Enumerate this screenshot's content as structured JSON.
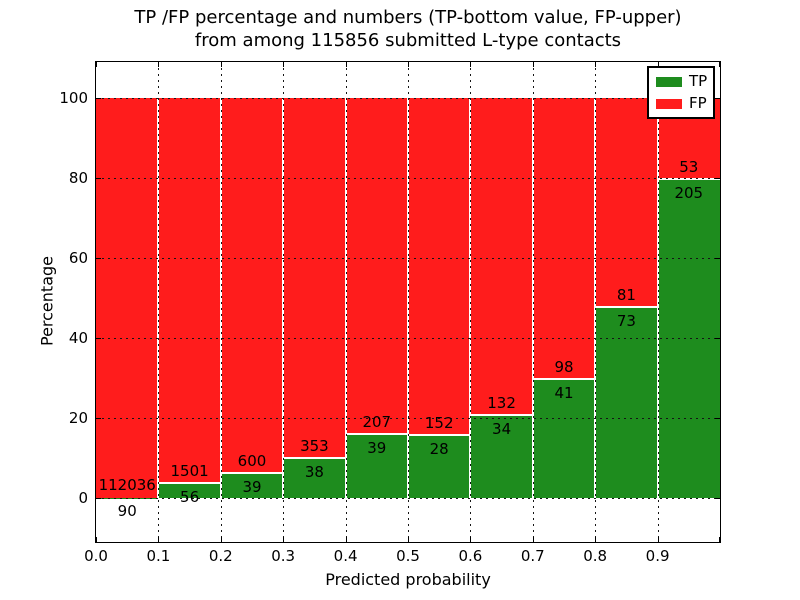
{
  "chart_data": {
    "type": "bar",
    "stacked": true,
    "normalized_to_percent": 100,
    "title_line1": "TP /FP percentage and numbers (TP-bottom value, FP-upper)",
    "title_line2": "from among 115856 submitted L-type contacts",
    "xlabel": "Predicted probability",
    "ylabel": "Percentage",
    "total_submitted": 115856,
    "categories": [
      "0.0-0.1",
      "0.1-0.2",
      "0.2-0.3",
      "0.3-0.4",
      "0.4-0.5",
      "0.5-0.6",
      "0.6-0.7",
      "0.7-0.8",
      "0.8-0.9",
      "0.9-1.0"
    ],
    "series": [
      {
        "name": "TP",
        "color": "#1e8c1e",
        "values": [
          90,
          56,
          39,
          38,
          39,
          28,
          34,
          41,
          73,
          205
        ]
      },
      {
        "name": "FP",
        "color": "#ff1c1c",
        "values": [
          112036,
          1501,
          600,
          353,
          207,
          152,
          132,
          98,
          81,
          53
        ]
      }
    ],
    "tp_percent_per_bin": [
      0.08,
      3.6,
      6.1,
      9.72,
      15.85,
      15.56,
      20.48,
      29.5,
      47.4,
      79.46
    ],
    "axes": {
      "xtick_labels": [
        "0.0",
        "0.1",
        "0.2",
        "0.3",
        "0.4",
        "0.5",
        "0.6",
        "0.7",
        "0.8",
        "0.9"
      ],
      "xtick_values": [
        0.0,
        0.1,
        0.2,
        0.3,
        0.4,
        0.5,
        0.6,
        0.7,
        0.8,
        0.9
      ],
      "ytick_labels": [
        "0",
        "20",
        "40",
        "60",
        "80",
        "100"
      ],
      "ytick_values": [
        0,
        20,
        40,
        60,
        80,
        100
      ],
      "xlim": [
        0.0,
        1.0
      ],
      "ylim": [
        -11,
        109
      ],
      "grid": "dotted"
    },
    "legend": {
      "position": "upper-right",
      "entries": [
        {
          "label": "TP",
          "color": "#1e8c1e"
        },
        {
          "label": "FP",
          "color": "#ff1c1c"
        }
      ]
    }
  }
}
